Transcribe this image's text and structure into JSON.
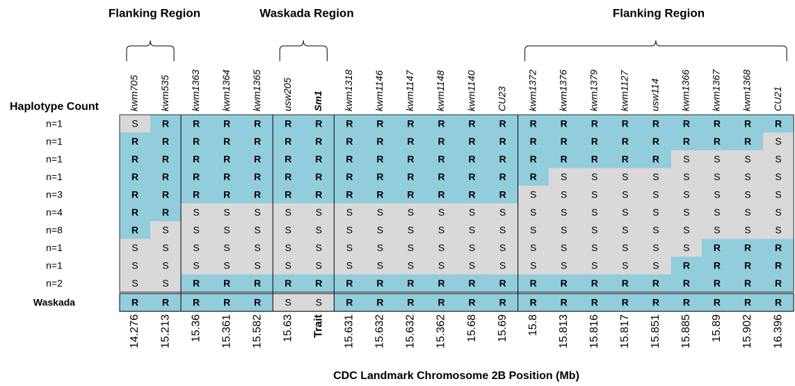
{
  "group_titles": [
    "Flanking Region",
    "Waskada Region",
    "Flanking Region"
  ],
  "markers": [
    "kwm705",
    "kwm535",
    "kwm1363",
    "kwm1364",
    "kwm1365",
    "usw205",
    "Sm1",
    "kwm1318",
    "kwm1146",
    "kwm1147",
    "kwm1148",
    "kwm1140",
    "CU23",
    "kwm1372",
    "kwm1376",
    "kwm1379",
    "kwm1127",
    "usw114",
    "kwm1366",
    "kwm1367",
    "kwm1368",
    "CU21"
  ],
  "haplotype_header": "Haplotype Count",
  "rows": [
    {
      "count": "n=1",
      "cells": [
        "S",
        "R",
        "R",
        "R",
        "R",
        "R",
        "R",
        "R",
        "R",
        "R",
        "R",
        "R",
        "R",
        "R",
        "R",
        "R",
        "R",
        "R",
        "R",
        "R",
        "R",
        "R"
      ]
    },
    {
      "count": "n=1",
      "cells": [
        "R",
        "R",
        "R",
        "R",
        "R",
        "R",
        "R",
        "R",
        "R",
        "R",
        "R",
        "R",
        "R",
        "R",
        "R",
        "R",
        "R",
        "R",
        "R",
        "R",
        "R",
        "S"
      ]
    },
    {
      "count": "n=1",
      "cells": [
        "R",
        "R",
        "R",
        "R",
        "R",
        "R",
        "R",
        "R",
        "R",
        "R",
        "R",
        "R",
        "R",
        "R",
        "R",
        "R",
        "R",
        "R",
        "S",
        "S",
        "S",
        "S"
      ]
    },
    {
      "count": "n=1",
      "cells": [
        "R",
        "R",
        "R",
        "R",
        "R",
        "R",
        "R",
        "R",
        "R",
        "R",
        "R",
        "R",
        "R",
        "R",
        "S",
        "S",
        "S",
        "S",
        "S",
        "S",
        "S",
        "S"
      ]
    },
    {
      "count": "n=3",
      "cells": [
        "R",
        "R",
        "R",
        "R",
        "R",
        "R",
        "R",
        "R",
        "R",
        "R",
        "R",
        "R",
        "R",
        "S",
        "S",
        "S",
        "S",
        "S",
        "S",
        "S",
        "S",
        "S"
      ]
    },
    {
      "count": "n=4",
      "cells": [
        "R",
        "R",
        "S",
        "S",
        "S",
        "S",
        "S",
        "S",
        "S",
        "S",
        "S",
        "S",
        "S",
        "S",
        "S",
        "S",
        "S",
        "S",
        "S",
        "S",
        "S",
        "S"
      ]
    },
    {
      "count": "n=8",
      "cells": [
        "R",
        "S",
        "S",
        "S",
        "S",
        "S",
        "S",
        "S",
        "S",
        "S",
        "S",
        "S",
        "S",
        "S",
        "S",
        "S",
        "S",
        "S",
        "S",
        "S",
        "S",
        "S"
      ]
    },
    {
      "count": "n=1",
      "cells": [
        "S",
        "S",
        "S",
        "S",
        "S",
        "S",
        "S",
        "S",
        "S",
        "S",
        "S",
        "S",
        "S",
        "S",
        "S",
        "S",
        "S",
        "S",
        "S",
        "R",
        "R",
        "R"
      ]
    },
    {
      "count": "n=1",
      "cells": [
        "S",
        "S",
        "S",
        "S",
        "S",
        "S",
        "S",
        "S",
        "S",
        "S",
        "S",
        "S",
        "S",
        "S",
        "S",
        "S",
        "S",
        "S",
        "R",
        "R",
        "R",
        "R"
      ]
    },
    {
      "count": "n=2",
      "cells": [
        "S",
        "S",
        "R",
        "R",
        "R",
        "R",
        "R",
        "R",
        "R",
        "R",
        "R",
        "R",
        "R",
        "R",
        "R",
        "R",
        "R",
        "R",
        "R",
        "R",
        "R",
        "R"
      ]
    }
  ],
  "reference": {
    "label": "Waskada",
    "cells": [
      "R",
      "R",
      "R",
      "R",
      "R",
      "S",
      "S",
      "R",
      "R",
      "R",
      "R",
      "R",
      "R",
      "R",
      "R",
      "R",
      "R",
      "R",
      "R",
      "R",
      "R",
      "R"
    ]
  },
  "positions": [
    "14.276",
    "15.213",
    "15.36",
    "15.361",
    "15.582",
    "15.63",
    "Trait",
    "15.631",
    "15.632",
    "15.632",
    "15.362",
    "15.68",
    "15.69",
    "15.8",
    "15.813",
    "15.816",
    "15.817",
    "15.851",
    "15.885",
    "15.89",
    "15.902",
    "16.396"
  ],
  "axis_title": "CDC Landmark Chromosome 2B Position (Mb)"
}
